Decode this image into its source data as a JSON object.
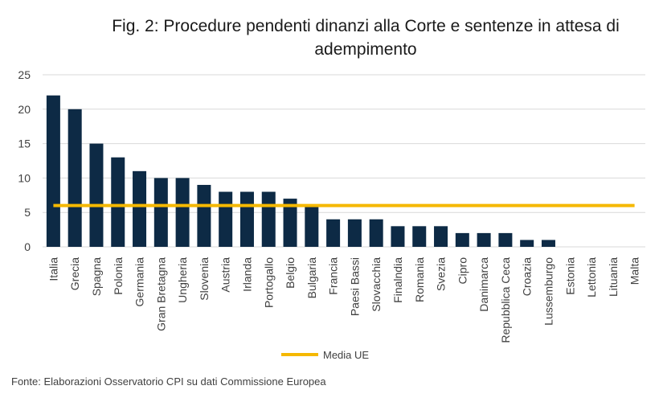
{
  "chart_data": {
    "type": "bar",
    "title": "Fig. 2: Procedure pendenti dinanzi alla Corte e sentenze in attesa di adempimento",
    "categories": [
      "Italia",
      "Grecia",
      "Spagna",
      "Polonia",
      "Germania",
      "Gran Bretagna",
      "Ungheria",
      "Slovenia",
      "Austria",
      "Irlanda",
      "Portogallo",
      "Belgio",
      "Bulgaria",
      "Francia",
      "Paesi Bassi",
      "Slovacchia",
      "Finalndia",
      "Romania",
      "Svezia",
      "Cipro",
      "Danimarca",
      "Repubblica Ceca",
      "Croazia",
      "Lussemburgo",
      "Estonia",
      "Lettonia",
      "Lituania",
      "Malta"
    ],
    "values": [
      22,
      20,
      15,
      13,
      11,
      10,
      10,
      9,
      8,
      8,
      8,
      7,
      6,
      4,
      4,
      4,
      3,
      3,
      3,
      2,
      2,
      2,
      1,
      1,
      0,
      0,
      0,
      0
    ],
    "reference_line": {
      "name": "Media UE",
      "value": 6
    },
    "ylim": [
      0,
      25
    ],
    "yticks": [
      0,
      5,
      10,
      15,
      20,
      25
    ],
    "grid": true,
    "legend": "bottom",
    "colors": {
      "bars": "#0d2a45",
      "reference_line": "#f5b800",
      "grid": "#d9d9d9"
    }
  },
  "source": "Fonte: Elaborazioni Osservatorio CPI su dati Commissione Europea"
}
